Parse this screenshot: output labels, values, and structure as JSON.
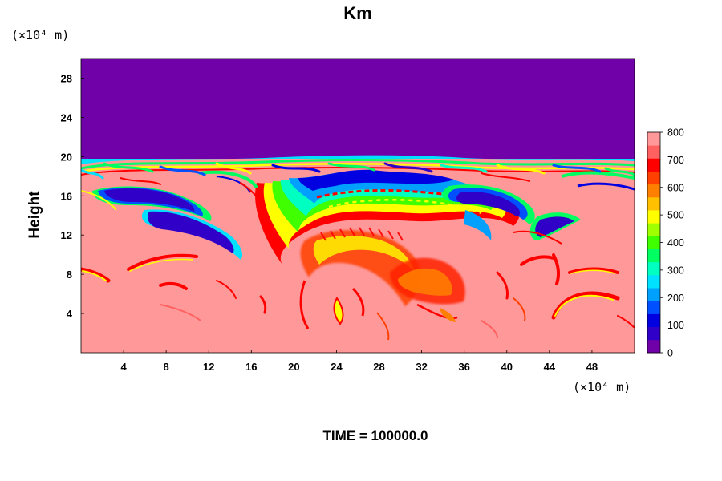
{
  "chart_data": {
    "type": "heatmap",
    "title": "Km",
    "ylabel": "Height",
    "y_unit": "(×10⁴ m)",
    "x_unit": "(×10⁴ m)",
    "xlim": [
      0,
      52
    ],
    "ylim": [
      0,
      30
    ],
    "x_ticks": [
      4,
      8,
      12,
      16,
      20,
      24,
      28,
      32,
      36,
      40,
      44,
      48
    ],
    "y_ticks": [
      4,
      8,
      12,
      16,
      20,
      24,
      28
    ],
    "colorbar": {
      "range": [
        0,
        800
      ],
      "ticks": [
        0,
        100,
        200,
        300,
        400,
        500,
        600,
        700,
        800
      ],
      "colors": [
        "#7000a8",
        "#3000c8",
        "#0000e0",
        "#0050ff",
        "#00a0ff",
        "#00e0ff",
        "#00ffc0",
        "#00ff60",
        "#40ff00",
        "#a0ff00",
        "#ffff00",
        "#ffc000",
        "#ff8000",
        "#ff4000",
        "#ff0000",
        "#ff6060",
        "#ff9898"
      ]
    },
    "footer": "TIME = 100000.0"
  }
}
